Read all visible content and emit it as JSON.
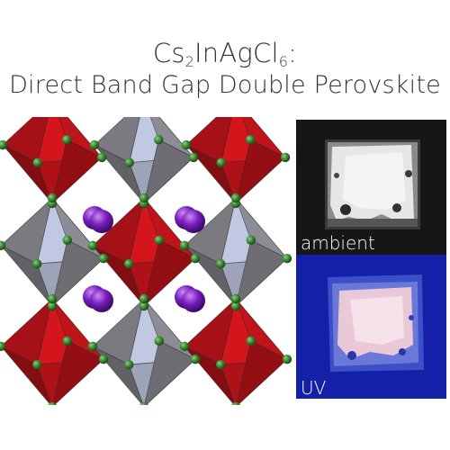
{
  "title": {
    "formula_prefix": "Cs",
    "sub1": "2",
    "formula_mid": "InAgCl",
    "sub2": "6",
    "formula_suffix": ":",
    "line2": "Direct Band Gap Double Perovskite"
  },
  "photos": {
    "ambient_label": "ambient",
    "uv_label": "UV"
  },
  "colors": {
    "ag_octahedron": "#d0141a",
    "in_octahedron": "#9a9a9a",
    "cl_atom": "#2f7d2c",
    "cs_atom": "#7a1fbf",
    "uv_background": "#1520a8"
  }
}
